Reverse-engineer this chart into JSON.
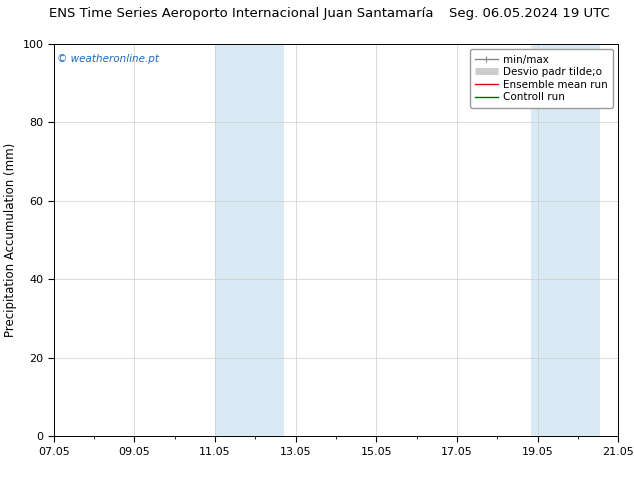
{
  "title_left": "ENS Time Series Aeroporto Internacional Juan Santamaría",
  "title_right": "Seg. 06.05.2024 19 UTC",
  "ylabel": "Precipitation Accumulation (mm)",
  "ylim": [
    0,
    100
  ],
  "xtick_positions": [
    0,
    2,
    4,
    6,
    8,
    10,
    12,
    14
  ],
  "xtick_labels": [
    "07.05",
    "09.05",
    "11.05",
    "13.05",
    "15.05",
    "17.05",
    "19.05",
    "21.05"
  ],
  "xlim": [
    0,
    14
  ],
  "shaded_regions": [
    {
      "xmin": 4.0,
      "xmax": 5.7,
      "color": "#daeaf5"
    },
    {
      "xmin": 11.85,
      "xmax": 13.55,
      "color": "#daeaf5"
    }
  ],
  "watermark": "© weatheronline.pt",
  "watermark_color": "#1a6bbf",
  "legend_items": [
    {
      "label": "min/max",
      "color": "#888888",
      "lw": 1.2
    },
    {
      "label": "Desvio padr tilde;o",
      "color": "#cccccc",
      "lw": 5
    },
    {
      "label": "Ensemble mean run",
      "color": "#dd0000",
      "lw": 1.2
    },
    {
      "label": "Controll run",
      "color": "#006600",
      "lw": 1.2
    }
  ],
  "background_color": "#ffffff",
  "plot_bg_color": "#ffffff",
  "grid_color": "#cccccc",
  "title_fontsize": 9.5,
  "axis_fontsize": 8.5,
  "tick_fontsize": 8,
  "legend_fontsize": 7.5
}
